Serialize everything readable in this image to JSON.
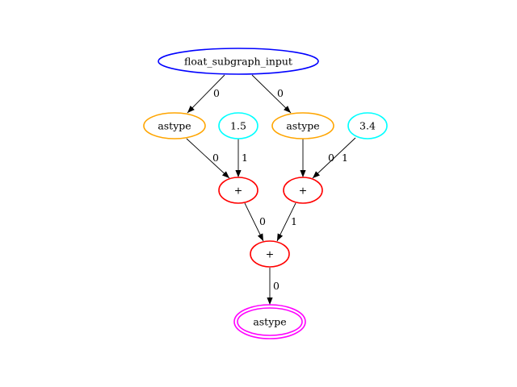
{
  "nodes": [
    {
      "id": "input",
      "label": "float_subgraph_input",
      "color": "#0000ff"
    },
    {
      "id": "astype1",
      "label": "astype",
      "color": "#ffa500"
    },
    {
      "id": "c15",
      "label": "1.5",
      "color": "#00ffff"
    },
    {
      "id": "astype2",
      "label": "astype",
      "color": "#ffa500"
    },
    {
      "id": "c34",
      "label": "3.4",
      "color": "#00ffff"
    },
    {
      "id": "plus1",
      "label": "+",
      "color": "#ff0000"
    },
    {
      "id": "plus2",
      "label": "+",
      "color": "#ff0000"
    },
    {
      "id": "plus3",
      "label": "+",
      "color": "#ff0000"
    },
    {
      "id": "output",
      "label": "astype",
      "color": "#ff00ff",
      "double": true
    }
  ],
  "edges": [
    {
      "from": "input",
      "to": "astype1",
      "label": "0"
    },
    {
      "from": "input",
      "to": "astype2",
      "label": "0"
    },
    {
      "from": "astype1",
      "to": "plus1",
      "label": "0"
    },
    {
      "from": "c15",
      "to": "plus1",
      "label": "1"
    },
    {
      "from": "astype2",
      "to": "plus2",
      "label": "0"
    },
    {
      "from": "c34",
      "to": "plus2",
      "label": "1"
    },
    {
      "from": "plus1",
      "to": "plus3",
      "label": "0"
    },
    {
      "from": "plus2",
      "to": "plus3",
      "label": "1"
    },
    {
      "from": "plus3",
      "to": "output",
      "label": "0"
    }
  ]
}
